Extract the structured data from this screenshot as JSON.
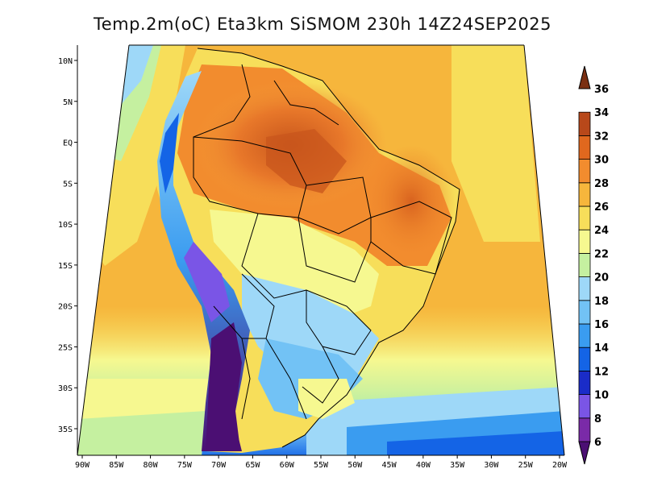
{
  "title": "Temp.2m(oC) Eta3km SiSMOM 230h 14Z24SEP2025",
  "map": {
    "variable": "2 m temperature",
    "units": "oC",
    "projection": "conic",
    "extent": {
      "lon": [
        -90,
        -20
      ],
      "lat": [
        -38,
        12
      ]
    },
    "x_ticks": [
      {
        "lon": -90,
        "label": "90W"
      },
      {
        "lon": -85,
        "label": "85W"
      },
      {
        "lon": -80,
        "label": "80W"
      },
      {
        "lon": -75,
        "label": "75W"
      },
      {
        "lon": -70,
        "label": "70W"
      },
      {
        "lon": -65,
        "label": "65W"
      },
      {
        "lon": -60,
        "label": "60W"
      },
      {
        "lon": -55,
        "label": "55W"
      },
      {
        "lon": -50,
        "label": "50W"
      },
      {
        "lon": -45,
        "label": "45W"
      },
      {
        "lon": -40,
        "label": "40W"
      },
      {
        "lon": -35,
        "label": "35W"
      },
      {
        "lon": -30,
        "label": "30W"
      },
      {
        "lon": -25,
        "label": "25W"
      },
      {
        "lon": -20,
        "label": "20W"
      }
    ],
    "y_ticks": [
      {
        "lat": 10,
        "label": "10N"
      },
      {
        "lat": 5,
        "label": "5N"
      },
      {
        "lat": 0,
        "label": "EQ"
      },
      {
        "lat": -5,
        "label": "5S"
      },
      {
        "lat": -10,
        "label": "10S"
      },
      {
        "lat": -15,
        "label": "15S"
      },
      {
        "lat": -20,
        "label": "20S"
      },
      {
        "lat": -25,
        "label": "25S"
      },
      {
        "lat": -30,
        "label": "30S"
      },
      {
        "lat": -35,
        "label": "35S"
      }
    ]
  },
  "colorbar": {
    "labels": [
      "6",
      "8",
      "10",
      "12",
      "14",
      "16",
      "18",
      "20",
      "22",
      "24",
      "26",
      "28",
      "30",
      "32",
      "34",
      "36"
    ],
    "colors": [
      "#4b0f73",
      "#7a2aa8",
      "#7a55e6",
      "#1a2cc8",
      "#1464e6",
      "#3a9cf0",
      "#72c2f5",
      "#9ed8f8",
      "#c5f0a0",
      "#f6f890",
      "#f7de5a",
      "#f6b63c",
      "#f28c2e",
      "#e0681e",
      "#b8481a",
      "#7a2f12"
    ]
  }
}
